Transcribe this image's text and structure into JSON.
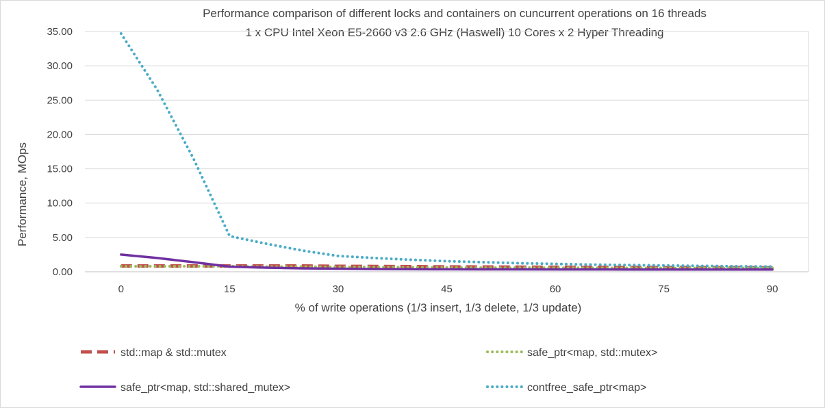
{
  "chart_data": {
    "type": "line",
    "title": "Performance comparison of different locks and containers on cuncurrent operations on 16 threads",
    "subtitle": "1 x CPU Intel Xeon E5-2660 v3 2.6 GHz (Haswell) 10 Cores x 2 Hyper Threading",
    "xlabel": "% of write operations (1/3 insert, 1/3 delete, 1/3 update)",
    "ylabel": "Performance, MOps",
    "x": [
      0,
      5,
      10,
      15,
      20,
      25,
      30,
      35,
      40,
      45,
      50,
      55,
      60,
      65,
      70,
      75,
      80,
      85,
      90
    ],
    "x_ticks": [
      "0",
      "15",
      "30",
      "45",
      "60",
      "75",
      "90"
    ],
    "x_tick_values": [
      0,
      15,
      30,
      45,
      60,
      75,
      90
    ],
    "y_ticks": [
      "0.00",
      "5.00",
      "10.00",
      "15.00",
      "20.00",
      "25.00",
      "30.00",
      "35.00"
    ],
    "y_tick_values": [
      0,
      5,
      10,
      15,
      20,
      25,
      30,
      35
    ],
    "xlim": [
      -5,
      95
    ],
    "ylim": [
      0,
      35
    ],
    "grid": "horizontal",
    "legend_position": "bottom",
    "series": [
      {
        "name": "std::map & std::mutex",
        "color": "#c0504d",
        "style": "dashed",
        "values": [
          0.85,
          0.85,
          0.85,
          0.85,
          0.85,
          0.85,
          0.8,
          0.78,
          0.75,
          0.72,
          0.7,
          0.68,
          0.66,
          0.65,
          0.64,
          0.63,
          0.62,
          0.62,
          0.6
        ]
      },
      {
        "name": "safe_ptr<map, std::mutex>",
        "color": "#9bbb59",
        "style": "dotted",
        "values": [
          0.8,
          0.8,
          0.8,
          0.8,
          0.75,
          0.75,
          0.7,
          0.68,
          0.65,
          0.63,
          0.6,
          0.6,
          0.58,
          0.57,
          0.56,
          0.55,
          0.55,
          0.55,
          0.55
        ]
      },
      {
        "name": "safe_ptr<map, std::shared_mutex>",
        "color": "#7030a0",
        "style": "solid",
        "values": [
          2.5,
          2.0,
          1.4,
          0.75,
          0.6,
          0.5,
          0.45,
          0.4,
          0.38,
          0.36,
          0.35,
          0.35,
          0.34,
          0.34,
          0.33,
          0.33,
          0.33,
          0.32,
          0.32
        ]
      },
      {
        "name": "contfree_safe_ptr<map>",
        "color": "#4bacc6",
        "style": "dotted",
        "values": [
          34.7,
          26.5,
          16.5,
          5.2,
          4.1,
          3.1,
          2.3,
          2.0,
          1.75,
          1.55,
          1.4,
          1.25,
          1.15,
          1.05,
          0.98,
          0.92,
          0.86,
          0.8,
          0.75
        ]
      }
    ]
  }
}
